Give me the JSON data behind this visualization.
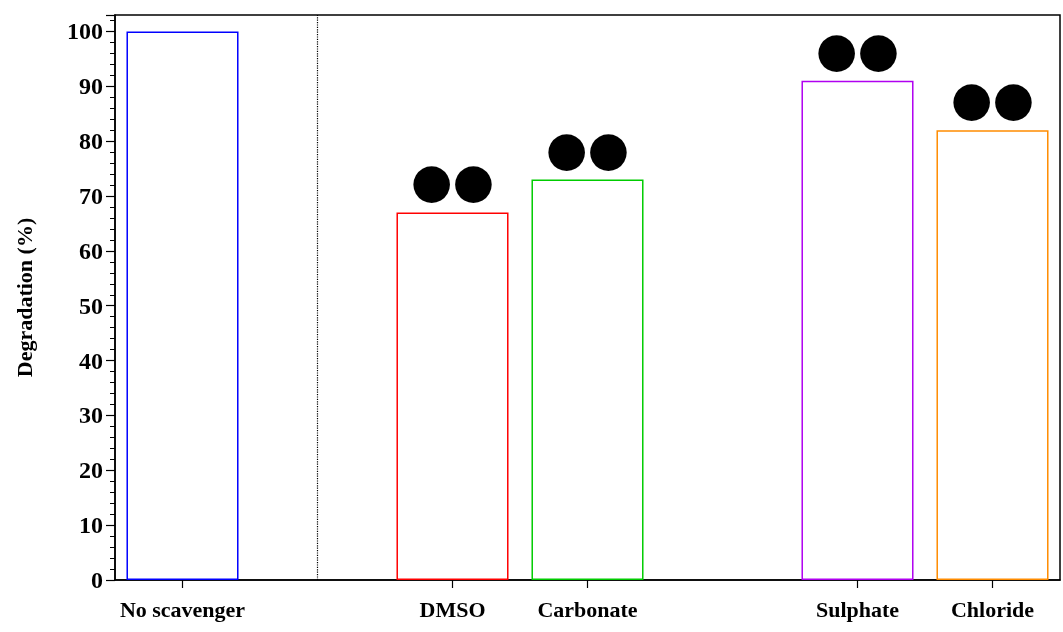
{
  "chart_data": {
    "type": "bar",
    "ylabel": "Degradation (%)",
    "categories": [
      "No scavenger",
      null,
      "DMSO",
      "Carbonate",
      null,
      "Sulphate",
      "Chloride"
    ],
    "values": [
      100,
      null,
      67,
      73,
      null,
      91,
      82
    ],
    "colors": [
      "#0000ff",
      "#000000",
      "#ff0000",
      "#00cc00",
      "#000000",
      "#b000f0",
      "#ff8c00"
    ],
    "ylim": [
      0,
      103
    ],
    "yticks": [
      0,
      10,
      20,
      30,
      40,
      50,
      60,
      70,
      80,
      90,
      100
    ],
    "annotations": [
      {
        "text": "●●",
        "x": "DMSO",
        "y": 67
      },
      {
        "text": "●●",
        "x": "Carbonate",
        "y": 73
      },
      {
        "text": "●●",
        "x": "Sulphate",
        "y": 91
      },
      {
        "text": "●●",
        "x": "Chloride",
        "y": 82
      }
    ]
  }
}
